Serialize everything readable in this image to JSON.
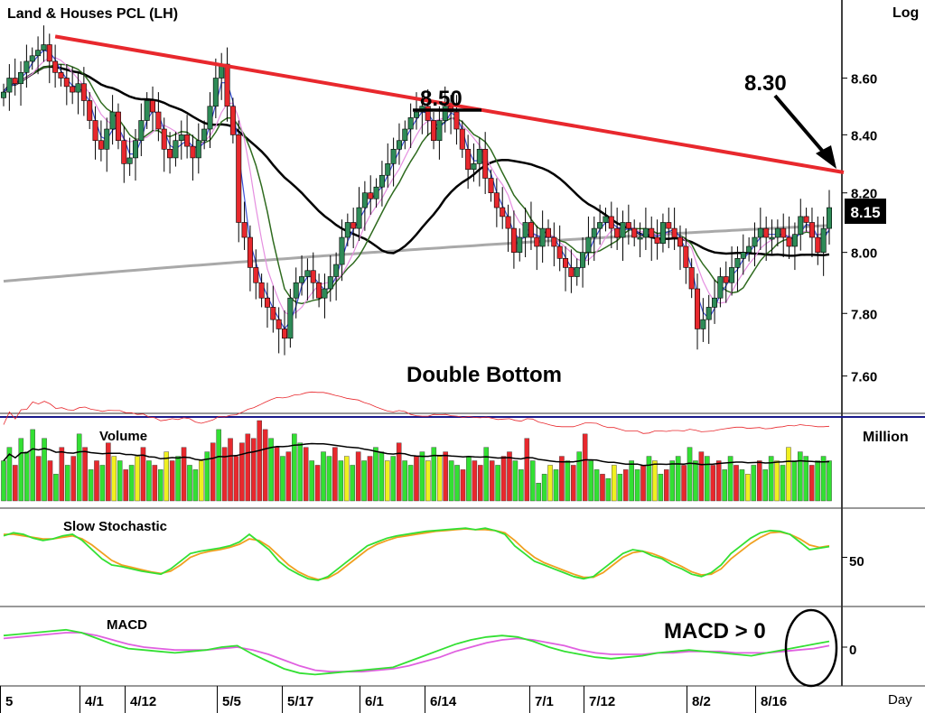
{
  "chart_data": [
    {
      "type": "candlestick",
      "title": "Land & Houses PCL (LH)",
      "scale": "log",
      "scale_label": "Log",
      "ylim": [
        7.5,
        8.85
      ],
      "y_ticks": [
        "7.60",
        "7.80",
        "8.00",
        "8.20",
        "8.40",
        "8.60"
      ],
      "y_tick_values": [
        7.6,
        7.8,
        8.0,
        8.2,
        8.4,
        8.6
      ],
      "x_tick_labels": [
        "5",
        "4/1",
        "4/12",
        "5/5",
        "5/17",
        "6/1",
        "6/14",
        "7/1",
        "7/12",
        "8/2",
        "8/16"
      ],
      "x_tick_index": [
        0,
        12,
        22,
        40,
        52,
        66,
        78,
        95,
        106,
        123,
        135
      ],
      "x_axis_label": "Day",
      "last_price_label": "8.15",
      "last_price": 8.15,
      "annotations": {
        "resistance_high": "8.50",
        "target": "8.30",
        "pattern": "Double Bottom"
      },
      "trendline": {
        "from": [
          9,
          8.75
        ],
        "to": [
          152,
          8.27
        ],
        "color": "#e8282d"
      },
      "resistance_level": 8.5,
      "colors": {
        "up": "#2e8b57",
        "down": "#e8282d",
        "ma_long": "#000000",
        "ma_200": "#a9a9a9",
        "ma_mid": "#2f6b1f",
        "ma_short": "#3a4fd6",
        "ma_pink": "#e58fe0"
      },
      "closes": [
        8.55,
        8.6,
        8.58,
        8.62,
        8.66,
        8.68,
        8.7,
        8.72,
        8.66,
        8.62,
        8.6,
        8.57,
        8.55,
        8.58,
        8.52,
        8.45,
        8.38,
        8.35,
        8.42,
        8.48,
        8.38,
        8.3,
        8.32,
        8.38,
        8.45,
        8.52,
        8.48,
        8.42,
        8.35,
        8.32,
        8.38,
        8.4,
        8.36,
        8.32,
        8.38,
        8.42,
        8.5,
        8.6,
        8.65,
        8.5,
        8.4,
        8.1,
        8.05,
        7.95,
        7.9,
        7.85,
        7.82,
        7.78,
        7.75,
        7.72,
        7.85,
        7.9,
        7.92,
        7.94,
        7.9,
        7.85,
        7.88,
        7.92,
        7.96,
        8.05,
        8.1,
        8.08,
        8.15,
        8.2,
        8.18,
        8.22,
        8.26,
        8.3,
        8.35,
        8.38,
        8.42,
        8.46,
        8.48,
        8.5,
        8.45,
        8.38,
        8.45,
        8.5,
        8.48,
        8.42,
        8.35,
        8.28,
        8.3,
        8.35,
        8.25,
        8.2,
        8.15,
        8.12,
        8.08,
        8.0,
        8.05,
        8.1,
        8.05,
        8.02,
        8.08,
        8.05,
        8.02,
        7.98,
        7.95,
        7.92,
        7.95,
        8.0,
        8.05,
        8.08,
        8.1,
        8.12,
        8.08,
        8.05,
        8.1,
        8.08,
        8.05,
        8.05,
        8.08,
        8.05,
        8.03,
        8.1,
        8.08,
        8.05,
        8.02,
        7.95,
        7.88,
        7.75,
        7.78,
        7.82,
        7.85,
        7.92,
        7.9,
        7.95,
        7.98,
        8.0,
        8.02,
        8.05,
        8.08,
        8.05,
        8.05,
        8.08,
        8.05,
        8.02,
        8.06,
        8.12,
        8.1,
        8.05,
        8.0,
        8.08,
        8.15
      ],
      "volume_label": "Volume",
      "volume_unit": "Million",
      "volume": [
        9,
        12,
        8,
        14,
        11,
        16,
        10,
        14,
        9,
        6,
        12,
        8,
        10,
        15,
        12,
        7,
        9,
        8,
        13,
        10,
        9,
        7,
        8,
        10,
        12,
        9,
        8,
        7,
        11,
        9,
        10,
        12,
        8,
        7,
        9,
        11,
        13,
        16,
        12,
        14,
        10,
        13,
        15,
        14,
        18,
        16,
        14,
        12,
        10,
        11,
        15,
        13,
        12,
        9,
        8,
        11,
        10,
        12,
        9,
        10,
        8,
        11,
        9,
        10,
        12,
        11,
        9,
        10,
        13,
        9,
        8,
        10,
        11,
        9,
        12,
        10,
        11,
        9,
        8,
        7,
        10,
        9,
        8,
        12,
        9,
        8,
        10,
        11,
        9,
        7,
        14,
        9,
        4,
        6,
        8,
        7,
        10,
        9,
        8,
        11,
        15,
        9,
        7,
        6,
        5,
        8,
        6,
        7,
        9,
        7,
        8,
        10,
        9,
        6,
        7,
        9,
        10,
        8,
        12,
        9,
        11,
        10,
        8,
        9,
        7,
        10,
        8,
        7,
        6,
        8,
        9,
        7,
        10,
        9,
        8,
        12,
        9,
        11,
        10,
        8,
        9,
        10,
        9
      ],
      "volume_colors": [
        "g",
        "g",
        "r",
        "g",
        "g",
        "g",
        "r",
        "g",
        "r",
        "g",
        "r",
        "g",
        "r",
        "g",
        "r",
        "g",
        "r",
        "g",
        "r",
        "y",
        "g",
        "r",
        "g",
        "y",
        "r",
        "g",
        "r",
        "g",
        "y",
        "r",
        "g",
        "r",
        "g",
        "g",
        "y",
        "g",
        "r",
        "g",
        "r",
        "r",
        "r",
        "r",
        "r",
        "r",
        "r",
        "r",
        "g",
        "r",
        "g",
        "r",
        "g",
        "g",
        "r",
        "g",
        "r",
        "g",
        "g",
        "r",
        "g",
        "y",
        "g",
        "r",
        "g",
        "r",
        "g",
        "g",
        "y",
        "g",
        "r",
        "g",
        "g",
        "r",
        "g",
        "y",
        "g",
        "y",
        "r",
        "g",
        "g",
        "r",
        "g",
        "r",
        "r",
        "g",
        "r",
        "g",
        "r",
        "r",
        "g",
        "g",
        "r",
        "g",
        "g",
        "g",
        "y",
        "g",
        "r",
        "g",
        "r",
        "g",
        "r",
        "g",
        "g",
        "r",
        "g",
        "y",
        "g",
        "r",
        "g",
        "g",
        "r",
        "g",
        "y",
        "g",
        "r",
        "g",
        "g",
        "r",
        "g",
        "g",
        "r",
        "g",
        "r",
        "r",
        "g",
        "g",
        "r",
        "g",
        "y",
        "g",
        "r",
        "g",
        "g",
        "y",
        "g",
        "y",
        "g",
        "g",
        "g",
        "r",
        "g",
        "g",
        "g"
      ],
      "stochastic_label": "Slow  Stochastic",
      "stochastic_tick": "50",
      "stochastic_tick_value": 50,
      "stochastic_k": [
        78,
        82,
        80,
        75,
        72,
        74,
        78,
        80,
        72,
        60,
        48,
        40,
        38,
        35,
        32,
        30,
        28,
        35,
        45,
        55,
        58,
        60,
        62,
        65,
        70,
        80,
        70,
        60,
        45,
        35,
        28,
        22,
        20,
        25,
        35,
        45,
        55,
        65,
        70,
        75,
        78,
        80,
        82,
        84,
        85,
        86,
        87,
        88,
        86,
        88,
        85,
        80,
        65,
        55,
        45,
        40,
        35,
        30,
        25,
        22,
        25,
        35,
        45,
        55,
        60,
        58,
        52,
        48,
        40,
        35,
        28,
        25,
        30,
        40,
        55,
        65,
        75,
        82,
        85,
        84,
        80,
        70,
        60,
        62,
        64
      ],
      "stochastic_d": [
        80,
        80,
        78,
        76,
        74,
        74,
        76,
        78,
        74,
        66,
        56,
        46,
        40,
        37,
        34,
        31,
        29,
        32,
        40,
        50,
        55,
        58,
        60,
        63,
        67,
        74,
        72,
        64,
        52,
        40,
        31,
        25,
        21,
        23,
        30,
        40,
        50,
        60,
        67,
        72,
        76,
        78,
        80,
        82,
        84,
        85,
        86,
        87,
        86,
        86,
        85,
        82,
        72,
        60,
        50,
        43,
        38,
        33,
        28,
        24,
        24,
        30,
        40,
        50,
        56,
        58,
        55,
        50,
        44,
        38,
        31,
        27,
        28,
        35,
        48,
        58,
        68,
        76,
        82,
        83,
        80,
        74,
        66,
        63,
        65
      ],
      "macd_label": "MACD",
      "macd_annotation": "MACD > 0",
      "macd_tick": "0",
      "macd_tick_value": 0,
      "macd": [
        0.08,
        0.09,
        0.1,
        0.11,
        0.12,
        0.1,
        0.06,
        0.02,
        -0.01,
        -0.02,
        -0.03,
        -0.04,
        -0.03,
        -0.02,
        0.0,
        0.01,
        -0.05,
        -0.1,
        -0.15,
        -0.18,
        -0.19,
        -0.18,
        -0.17,
        -0.16,
        -0.15,
        -0.14,
        -0.1,
        -0.06,
        -0.02,
        0.02,
        0.05,
        0.07,
        0.08,
        0.07,
        0.04,
        0.0,
        -0.03,
        -0.05,
        -0.07,
        -0.08,
        -0.07,
        -0.06,
        -0.04,
        -0.03,
        -0.02,
        -0.03,
        -0.04,
        -0.05,
        -0.06,
        -0.04,
        -0.02,
        0.0,
        0.02,
        0.04
      ],
      "macd_signal": [
        0.06,
        0.07,
        0.08,
        0.09,
        0.1,
        0.1,
        0.08,
        0.05,
        0.02,
        0.0,
        -0.01,
        -0.02,
        -0.02,
        -0.02,
        -0.01,
        0.0,
        -0.02,
        -0.05,
        -0.09,
        -0.13,
        -0.16,
        -0.17,
        -0.17,
        -0.17,
        -0.16,
        -0.15,
        -0.13,
        -0.1,
        -0.07,
        -0.03,
        0.0,
        0.03,
        0.05,
        0.06,
        0.05,
        0.03,
        0.01,
        -0.02,
        -0.04,
        -0.05,
        -0.05,
        -0.05,
        -0.04,
        -0.04,
        -0.03,
        -0.03,
        -0.03,
        -0.04,
        -0.04,
        -0.04,
        -0.03,
        -0.02,
        -0.01,
        0.01
      ]
    }
  ]
}
